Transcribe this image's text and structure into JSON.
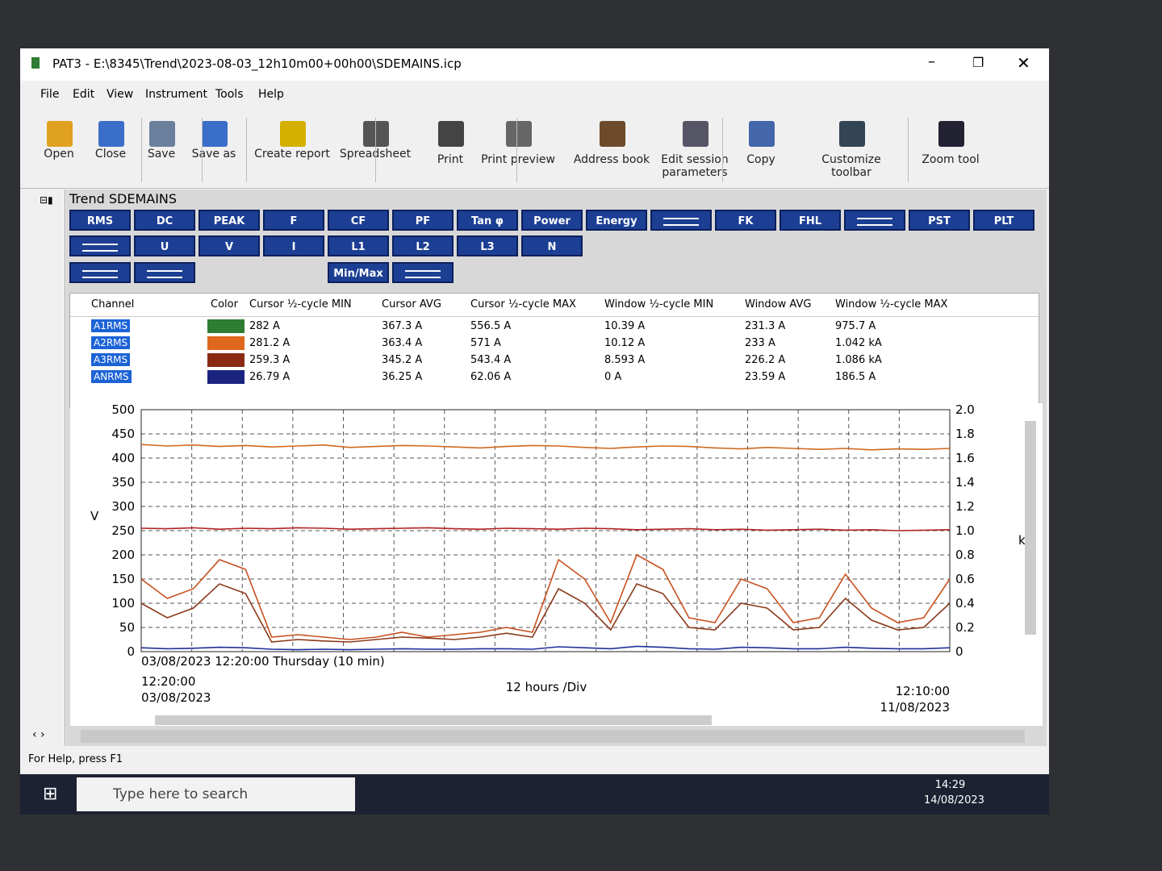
{
  "window": {
    "title": "PAT3 - E:\\8345\\Trend\\2023-08-03_12h10m00+00h00\\SDEMAINS.icp"
  },
  "menu": [
    "File",
    "Edit",
    "View",
    "Instrument",
    "Tools",
    "Help"
  ],
  "toolbar": [
    "Open",
    "Close",
    "Save",
    "Save as",
    "Create report",
    "Spreadsheet",
    "Print",
    "Print preview",
    "Address book",
    "Edit session parameters",
    "Copy",
    "Customize toolbar",
    "Zoom tool"
  ],
  "panel": {
    "title": "Trend SDEMAINS",
    "row1": [
      "RMS",
      "DC",
      "PEAK",
      "F",
      "CF",
      "PF",
      "Tan φ",
      "Power",
      "Energy",
      null,
      "FK",
      "FHL",
      null,
      "PST",
      "PLT"
    ],
    "row2": [
      null,
      "U",
      "V",
      "I",
      "L1",
      "L2",
      "L3",
      "N"
    ],
    "row3": [
      null,
      null,
      "Min/Max",
      null
    ]
  },
  "table": {
    "headers": [
      "Channel",
      "Color",
      "Cursor ½-cycle MIN",
      "Cursor AVG",
      "Cursor ½-cycle MAX",
      "Window ½-cycle MIN",
      "Window AVG",
      "Window ½-cycle MAX"
    ],
    "rows": [
      {
        "channel": "A1RMS",
        "color": "#2e7d32",
        "cells": [
          "282 A",
          "367.3 A",
          "556.5 A",
          "10.39 A",
          "231.3 A",
          "975.7 A"
        ]
      },
      {
        "channel": "A2RMS",
        "color": "#e0681c",
        "cells": [
          "281.2 A",
          "363.4 A",
          "571 A",
          "10.12 A",
          "233 A",
          "1.042 kA"
        ]
      },
      {
        "channel": "A3RMS",
        "color": "#8a2a12",
        "cells": [
          "259.3 A",
          "345.2 A",
          "543.4 A",
          "8.593 A",
          "226.2 A",
          "1.086 kA"
        ]
      },
      {
        "channel": "ANRMS",
        "color": "#1a237e",
        "cells": [
          "26.79 A",
          "36.25 A",
          "62.06 A",
          "0 A",
          "23.59 A",
          "186.5 A"
        ]
      }
    ]
  },
  "chart_data": {
    "type": "line",
    "ylabel": "V",
    "y2label": "kA",
    "ylim": [
      0,
      500
    ],
    "yticks": [
      0,
      50,
      100,
      150,
      200,
      250,
      300,
      350,
      400,
      450,
      500
    ],
    "y2lim": [
      0,
      2
    ],
    "y2ticks": [
      0,
      0.2,
      0.4,
      0.6,
      0.8,
      {
        "value": 1,
        "label": "1.0"
      },
      1.2,
      1.4,
      1.6,
      1.8,
      {
        "value": 2,
        "label": "2.0"
      }
    ],
    "grid": true,
    "cursor_label": "03/08/2023 12:20:00 Thursday (10 min)",
    "start_time": "12:20:00",
    "start_date": "03/08/2023",
    "division": "12 hours /Div",
    "end_time": "12:10:00",
    "end_date": "11/08/2023",
    "series": [
      {
        "color": "#d2691e",
        "values": [
          428,
          425,
          427,
          424,
          426,
          423,
          425,
          427,
          422,
          424,
          426,
          425,
          423,
          421,
          424,
          426,
          425,
          422,
          420,
          423,
          425,
          424,
          421,
          419,
          422,
          420,
          418,
          420,
          417,
          419,
          418,
          420
        ]
      },
      {
        "color": "#b22222",
        "values": [
          255,
          254,
          256,
          253,
          255,
          254,
          256,
          255,
          253,
          254,
          255,
          256,
          254,
          253,
          255,
          254,
          253,
          255,
          254,
          252,
          253,
          254,
          252,
          253,
          251,
          252,
          253,
          251,
          252,
          250,
          251,
          252
        ]
      },
      {
        "color": "#c8501e",
        "values": [
          150,
          110,
          130,
          190,
          170,
          30,
          35,
          30,
          25,
          30,
          40,
          30,
          35,
          40,
          50,
          40,
          190,
          150,
          60,
          200,
          170,
          70,
          60,
          150,
          130,
          60,
          70,
          160,
          90,
          60,
          70,
          150
        ]
      },
      {
        "color": "#8b3a1a",
        "values": [
          100,
          70,
          90,
          140,
          120,
          20,
          25,
          22,
          20,
          25,
          30,
          28,
          25,
          30,
          38,
          30,
          130,
          100,
          45,
          140,
          120,
          50,
          45,
          100,
          90,
          45,
          50,
          110,
          65,
          45,
          50,
          100
        ]
      },
      {
        "color": "#1f2f9a",
        "values": [
          8,
          6,
          7,
          9,
          8,
          5,
          4,
          5,
          4,
          5,
          6,
          5,
          5,
          6,
          6,
          5,
          10,
          8,
          6,
          11,
          9,
          6,
          5,
          9,
          8,
          6,
          6,
          9,
          7,
          6,
          6,
          8
        ]
      }
    ]
  },
  "status": "For Help, press F1",
  "taskbar": {
    "search": "Type here to search",
    "time": "14:29",
    "date": "14/08/2023"
  }
}
